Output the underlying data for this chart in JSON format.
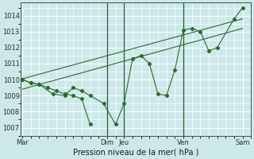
{
  "xlabel": "Pression niveau de la mer( hPa )",
  "bg_color": "#cce8ea",
  "grid_color": "#ffffff",
  "line_color": "#2d6b2d",
  "ylim": [
    1006.5,
    1014.8
  ],
  "yticks": [
    1007,
    1008,
    1009,
    1010,
    1011,
    1012,
    1013,
    1014
  ],
  "day_labels": [
    "Mar",
    "Dim",
    "Jeu",
    "Ven",
    "Sam"
  ],
  "day_positions": [
    0.0,
    5.0,
    6.0,
    9.5,
    13.0
  ],
  "vline_positions": [
    5.0,
    6.0,
    9.5
  ],
  "xlim": [
    -0.1,
    13.5
  ],
  "series1_x": [
    0.0,
    0.5,
    1.0,
    1.8,
    2.5,
    3.0,
    3.5,
    4.0,
    4.8,
    5.5,
    6.0,
    6.5,
    7.0,
    7.5,
    8.0,
    8.5,
    9.0,
    9.5,
    10.0,
    10.5,
    11.0,
    11.5,
    12.5,
    13.0
  ],
  "series1_y": [
    1010.0,
    1009.8,
    1009.7,
    1009.1,
    1009.0,
    1009.5,
    1009.3,
    1009.0,
    1008.5,
    1007.2,
    1008.5,
    1011.3,
    1011.5,
    1011.0,
    1009.1,
    1009.0,
    1010.6,
    1013.1,
    1013.2,
    1013.0,
    1011.8,
    1012.0,
    1013.8,
    1014.5
  ],
  "series2_x": [
    0.0,
    13.0
  ],
  "series2_y": [
    1010.05,
    1013.8
  ],
  "series3_x": [
    0.0,
    13.0
  ],
  "series3_y": [
    1009.4,
    1013.2
  ],
  "series1b_x": [
    0.0,
    0.5,
    1.0,
    1.5,
    2.0,
    2.5,
    3.0,
    3.5,
    4.0
  ],
  "series1b_y": [
    1010.0,
    1009.8,
    1009.7,
    1009.5,
    1009.3,
    1009.1,
    1009.0,
    1008.8,
    1007.2
  ]
}
